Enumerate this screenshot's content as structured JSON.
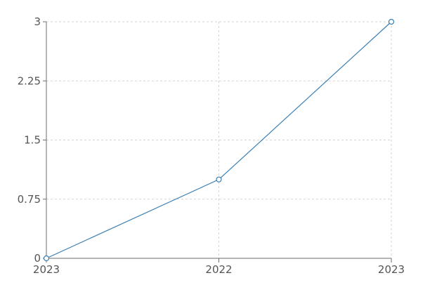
{
  "chart_data": {
    "type": "line",
    "title": "",
    "xlabel": "",
    "ylabel": "",
    "categories": [
      "2023",
      "2022",
      "2023"
    ],
    "series": [
      {
        "values": [
          0,
          1,
          3
        ]
      }
    ],
    "ylim": [
      0,
      3
    ],
    "yticks": [
      "0",
      "0.75",
      "1.5",
      "2.25",
      "3"
    ],
    "ytick_values": [
      0,
      0.75,
      1.5,
      2.25,
      3
    ],
    "grid": true,
    "legend": "none",
    "colors": {
      "series": "#3b7fb3",
      "grid": "#d3d3d3",
      "axis": "#6e6e6e",
      "text": "#555555"
    }
  }
}
